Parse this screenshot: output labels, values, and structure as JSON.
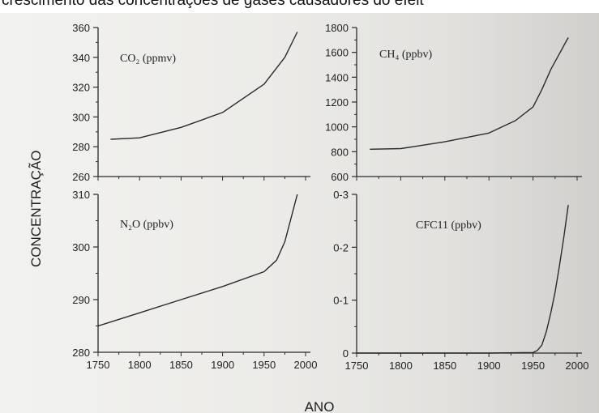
{
  "header_text": "crescimento das concentrações de gases causadores do efeit",
  "chart_data": [
    {
      "type": "line",
      "title": "CO₂ (ppmv)",
      "xlabel": "ANO",
      "ylabel": "CONCENTRAÇÃO",
      "xlim": [
        1750,
        2000
      ],
      "ylim": [
        260,
        360
      ],
      "yticks": [
        "260",
        "280",
        "300",
        "320",
        "340",
        "360"
      ],
      "x": [
        1765,
        1800,
        1850,
        1900,
        1950,
        1975,
        1990
      ],
      "values": [
        285,
        286,
        293,
        303,
        322,
        340,
        357
      ]
    },
    {
      "type": "line",
      "title": "CH₄ (ppbv)",
      "xlabel": "ANO",
      "ylabel": "CONCENTRAÇÃO",
      "xlim": [
        1750,
        2000
      ],
      "ylim": [
        600,
        1800
      ],
      "yticks": [
        "600",
        "800",
        "1000",
        "1200",
        "1400",
        "1600",
        "1800"
      ],
      "x": [
        1765,
        1800,
        1850,
        1900,
        1930,
        1950,
        1960,
        1970,
        1990
      ],
      "values": [
        820,
        825,
        880,
        950,
        1050,
        1160,
        1300,
        1460,
        1720
      ]
    },
    {
      "type": "line",
      "title": "N₂O (ppbv)",
      "xlabel": "ANO",
      "ylabel": "CONCENTRAÇÃO",
      "xlim": [
        1750,
        2000
      ],
      "ylim": [
        280,
        310
      ],
      "yticks": [
        "280",
        "290",
        "300",
        "310"
      ],
      "x": [
        1750,
        1800,
        1850,
        1900,
        1950,
        1965,
        1975,
        1990
      ],
      "values": [
        285,
        287.5,
        290,
        292.5,
        295.3,
        297.5,
        301,
        310
      ]
    },
    {
      "type": "line",
      "title": "CFC11 (ppbv)",
      "xlabel": "ANO",
      "ylabel": "CONCENTRAÇÃO",
      "xlim": [
        1750,
        2000
      ],
      "ylim": [
        0,
        0.3
      ],
      "yticks": [
        "0",
        "0-1",
        "0-2",
        "0-3"
      ],
      "xticks": [
        "1750",
        "1800",
        "1850",
        "1900",
        "1950",
        "2000"
      ],
      "x": [
        1750,
        1900,
        1950,
        1955,
        1960,
        1965,
        1970,
        1975,
        1980,
        1985,
        1990
      ],
      "values": [
        0,
        0,
        0.001,
        0.005,
        0.015,
        0.04,
        0.075,
        0.115,
        0.165,
        0.22,
        0.28
      ]
    }
  ]
}
